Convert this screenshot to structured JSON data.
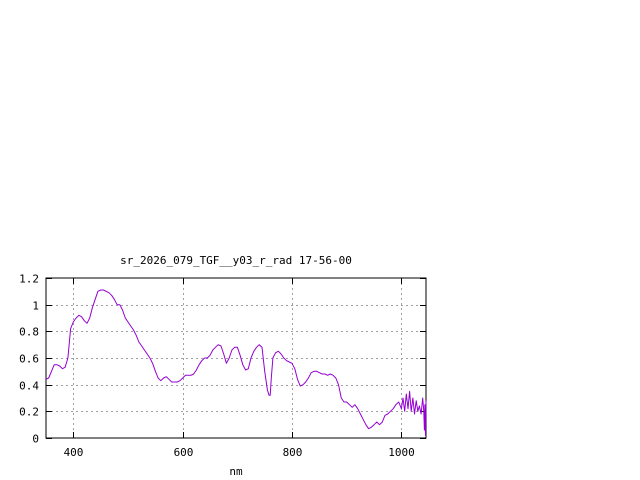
{
  "chart_data": {
    "type": "line",
    "title": "sr_2026_079_TGF__y03_r_rad 17-56-00",
    "xlabel": "nm",
    "ylabel": "",
    "xlim": [
      350,
      1045
    ],
    "ylim": [
      0,
      1.2
    ],
    "x_ticks": [
      400,
      600,
      800,
      1000
    ],
    "y_ticks": [
      0,
      0.2,
      0.4,
      0.6,
      0.8,
      1,
      1.2
    ],
    "x_tick_labels": [
      "400",
      "600",
      "800",
      "1000"
    ],
    "y_tick_labels": [
      "0",
      "0.2",
      "0.4",
      "0.6",
      "0.8",
      "1",
      "1.2"
    ],
    "grid": true,
    "legend": "none",
    "series": [
      {
        "color": "#9400d3",
        "x": [
          350,
          355,
          360,
          365,
          370,
          375,
          380,
          385,
          390,
          395,
          400,
          405,
          410,
          415,
          420,
          425,
          430,
          435,
          440,
          445,
          450,
          455,
          460,
          465,
          470,
          475,
          480,
          485,
          490,
          495,
          500,
          505,
          510,
          515,
          520,
          525,
          530,
          535,
          540,
          545,
          550,
          555,
          560,
          565,
          570,
          575,
          580,
          585,
          590,
          595,
          600,
          605,
          610,
          615,
          620,
          625,
          630,
          635,
          640,
          645,
          650,
          655,
          660,
          665,
          670,
          675,
          680,
          685,
          690,
          695,
          700,
          705,
          710,
          715,
          720,
          725,
          730,
          735,
          740,
          745,
          750,
          755,
          758,
          760,
          762,
          765,
          770,
          775,
          780,
          785,
          790,
          795,
          800,
          805,
          810,
          815,
          820,
          825,
          830,
          835,
          840,
          845,
          850,
          855,
          860,
          865,
          870,
          875,
          880,
          885,
          890,
          895,
          900,
          905,
          910,
          915,
          920,
          925,
          930,
          935,
          940,
          945,
          950,
          955,
          960,
          965,
          970,
          975,
          980,
          985,
          990,
          995,
          1000,
          1003,
          1006,
          1009,
          1012,
          1015,
          1018,
          1021,
          1024,
          1027,
          1030,
          1033,
          1036,
          1039,
          1041,
          1042,
          1043,
          1044,
          1045
        ],
        "y": [
          0.44,
          0.45,
          0.5,
          0.55,
          0.55,
          0.54,
          0.52,
          0.53,
          0.6,
          0.82,
          0.87,
          0.9,
          0.92,
          0.91,
          0.88,
          0.86,
          0.9,
          0.98,
          1.04,
          1.1,
          1.11,
          1.11,
          1.1,
          1.09,
          1.07,
          1.04,
          1.0,
          1.0,
          0.96,
          0.9,
          0.87,
          0.84,
          0.81,
          0.77,
          0.72,
          0.69,
          0.66,
          0.63,
          0.6,
          0.56,
          0.5,
          0.45,
          0.43,
          0.45,
          0.46,
          0.44,
          0.42,
          0.42,
          0.42,
          0.43,
          0.45,
          0.47,
          0.47,
          0.47,
          0.48,
          0.51,
          0.55,
          0.58,
          0.6,
          0.6,
          0.62,
          0.66,
          0.68,
          0.7,
          0.69,
          0.63,
          0.56,
          0.6,
          0.66,
          0.68,
          0.68,
          0.62,
          0.55,
          0.51,
          0.52,
          0.6,
          0.65,
          0.68,
          0.7,
          0.68,
          0.5,
          0.36,
          0.32,
          0.32,
          0.45,
          0.6,
          0.64,
          0.65,
          0.63,
          0.6,
          0.58,
          0.57,
          0.56,
          0.52,
          0.44,
          0.39,
          0.4,
          0.42,
          0.45,
          0.49,
          0.5,
          0.5,
          0.49,
          0.48,
          0.48,
          0.47,
          0.48,
          0.47,
          0.45,
          0.4,
          0.3,
          0.27,
          0.27,
          0.25,
          0.23,
          0.25,
          0.22,
          0.18,
          0.14,
          0.1,
          0.07,
          0.08,
          0.1,
          0.12,
          0.1,
          0.12,
          0.17,
          0.18,
          0.2,
          0.22,
          0.25,
          0.27,
          0.22,
          0.3,
          0.2,
          0.33,
          0.22,
          0.35,
          0.2,
          0.3,
          0.18,
          0.28,
          0.2,
          0.24,
          0.18,
          0.3,
          0.2,
          0.06,
          0.25,
          0.02,
          0.28
        ]
      }
    ]
  }
}
